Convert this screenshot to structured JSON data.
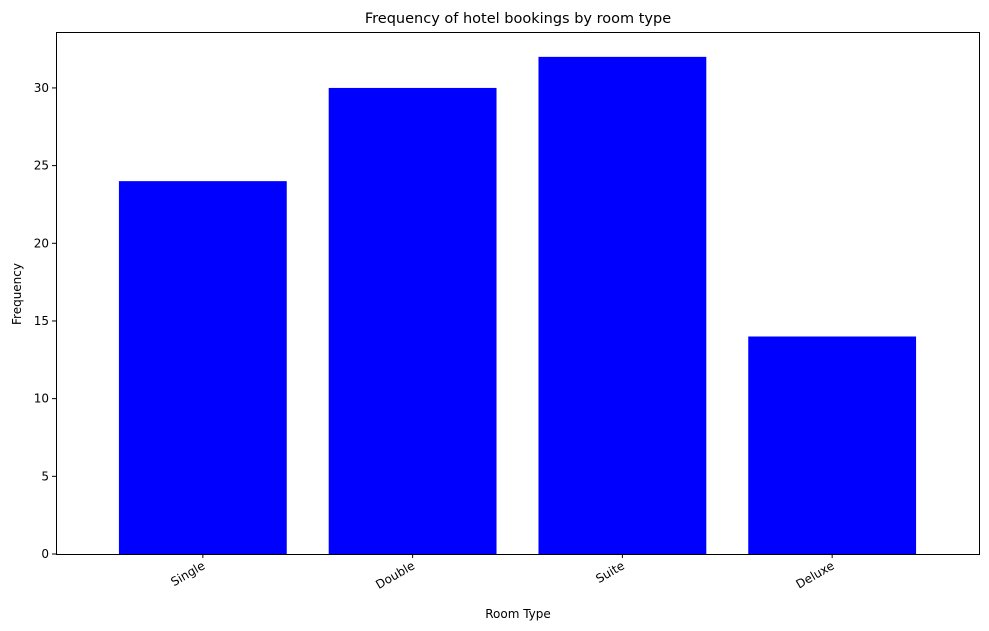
{
  "chart_data": {
    "type": "bar",
    "title": "Frequency of hotel bookings by room type",
    "xlabel": "Room Type",
    "ylabel": "Frequency",
    "categories": [
      "Single",
      "Double",
      "Suite",
      "Deluxe"
    ],
    "values": [
      24,
      30,
      32,
      14
    ],
    "ylim": [
      0,
      33.6
    ],
    "yticks": [
      0,
      5,
      10,
      15,
      20,
      25,
      30
    ],
    "grid": false,
    "bar_color": "#0000ff",
    "x_tick_rotation_deg": 30
  }
}
